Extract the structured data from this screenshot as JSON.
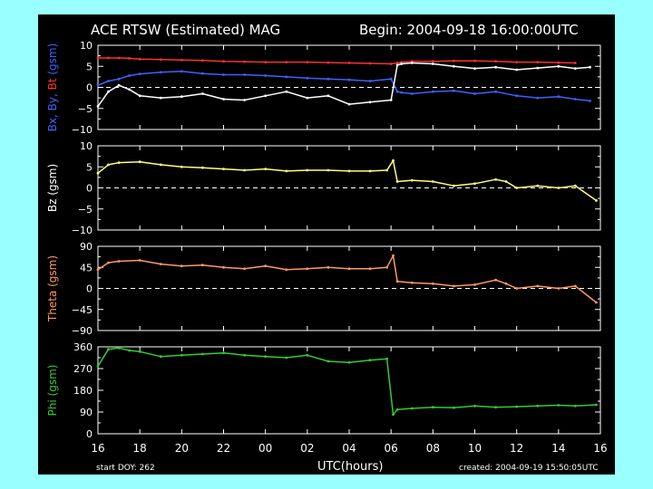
{
  "header": {
    "title": "ACE RTSW (Estimated) MAG",
    "begin": "Begin: 2004-09-18 16:00:00UTC"
  },
  "footer": {
    "start_doy": "start DOY:  262",
    "xlabel": "UTC(hours)",
    "created": "created: 2004-09-19 15:50:05UTC"
  },
  "colors": {
    "background": "#99ffff",
    "frame": "#000000",
    "bx": "#ffffff",
    "by": "#4060ff",
    "bt": "#ff3030",
    "bz": "#ffff80",
    "theta": "#ff9966",
    "phi": "#33cc33"
  },
  "chart_data": [
    {
      "type": "line",
      "ylabel_parts": [
        {
          "text": "Bx",
          "color": "#4060ff"
        },
        {
          "text": ", By, ",
          "color": "#4060ff"
        },
        {
          "text": "Bt",
          "color": "#ff3030"
        },
        {
          "text": " (gsm)",
          "color": "#4060ff"
        }
      ],
      "ylim": [
        -10,
        10
      ],
      "yticks": [
        "10",
        "5",
        "0",
        "−5",
        "−10"
      ],
      "ytick_values": [
        10,
        5,
        0,
        -5,
        -10
      ],
      "zero_line": true,
      "x": [
        16.0,
        16.5,
        17.0,
        17.5,
        18.0,
        19.0,
        20.0,
        21.0,
        22.0,
        23.0,
        24.0,
        25.0,
        26.0,
        27.0,
        28.0,
        29.0,
        30.0,
        30.3,
        30.5,
        31.0,
        32.0,
        33.0,
        34.0,
        35.0,
        36.0,
        37.0,
        38.0,
        38.8,
        39.5
      ],
      "series": [
        {
          "name": "Bt",
          "color": "#ff3030",
          "values": [
            7.0,
            7.0,
            7.0,
            6.9,
            6.7,
            6.6,
            6.5,
            6.4,
            6.2,
            6.1,
            6.0,
            6.0,
            6.0,
            5.9,
            5.8,
            5.7,
            5.6,
            5.8,
            6.0,
            6.2,
            6.2,
            6.3,
            6.3,
            6.2,
            6.0,
            6.0,
            5.9,
            5.8,
            null
          ]
        },
        {
          "name": "By",
          "color": "#4060ff",
          "values": [
            0.5,
            1.5,
            2.0,
            2.8,
            3.2,
            3.6,
            3.8,
            3.3,
            3.0,
            3.0,
            2.8,
            2.5,
            2.2,
            2.0,
            1.8,
            1.5,
            2.0,
            -1.0,
            -1.2,
            -1.5,
            -1.0,
            -0.8,
            -1.5,
            -1.0,
            -2.0,
            -2.5,
            -2.2,
            -2.8,
            -3.2
          ]
        },
        {
          "name": "Bx",
          "color": "#ffffff",
          "values": [
            -4.5,
            -1.0,
            0.5,
            -0.5,
            -2.0,
            -2.5,
            -2.2,
            -1.5,
            -2.8,
            -3.0,
            -2.0,
            -1.0,
            -2.5,
            -2.0,
            -4.0,
            -3.5,
            -3.0,
            5.3,
            5.6,
            5.8,
            5.6,
            5.0,
            4.5,
            4.8,
            4.2,
            4.6,
            5.0,
            4.5,
            4.8
          ]
        }
      ]
    },
    {
      "type": "line",
      "ylabel_parts": [
        {
          "text": "Bz (gsm)",
          "color": "#ffffff"
        }
      ],
      "ylim": [
        -10,
        10
      ],
      "yticks": [
        "10",
        "5",
        "0",
        "−5",
        "−10"
      ],
      "ytick_values": [
        10,
        5,
        0,
        -5,
        -10
      ],
      "zero_line": true,
      "x": [
        16.0,
        16.5,
        17.0,
        18.0,
        19.0,
        20.0,
        21.0,
        22.0,
        23.0,
        24.0,
        25.0,
        26.0,
        27.0,
        28.0,
        29.0,
        29.8,
        30.1,
        30.3,
        31.0,
        32.0,
        33.0,
        34.0,
        35.0,
        35.5,
        36.0,
        37.0,
        38.0,
        38.8,
        39.8
      ],
      "series": [
        {
          "name": "Bz",
          "color": "#ffff80",
          "values": [
            3.5,
            5.5,
            6.0,
            6.2,
            5.5,
            5.0,
            4.8,
            4.5,
            4.2,
            4.5,
            4.0,
            4.2,
            4.2,
            4.0,
            4.0,
            4.2,
            6.5,
            1.5,
            1.8,
            1.5,
            0.5,
            1.0,
            2.0,
            1.5,
            0.0,
            0.5,
            0.0,
            0.5,
            -3.0
          ]
        }
      ]
    },
    {
      "type": "line",
      "ylabel_parts": [
        {
          "text": "Theta (gsm)",
          "color": "#ff9966"
        }
      ],
      "ylim": [
        -90,
        90
      ],
      "yticks": [
        "90",
        "45",
        "0",
        "−45",
        "−90"
      ],
      "ytick_values": [
        90,
        45,
        0,
        -45,
        -90
      ],
      "zero_line": true,
      "x": [
        16.0,
        16.5,
        17.0,
        18.0,
        19.0,
        20.0,
        21.0,
        22.0,
        23.0,
        24.0,
        25.0,
        26.0,
        27.0,
        28.0,
        29.0,
        29.8,
        30.1,
        30.3,
        31.0,
        32.0,
        33.0,
        34.0,
        35.0,
        35.5,
        36.0,
        37.0,
        38.0,
        38.8,
        39.8
      ],
      "series": [
        {
          "name": "Theta",
          "color": "#ff9966",
          "values": [
            40,
            55,
            58,
            60,
            52,
            48,
            50,
            45,
            42,
            48,
            40,
            42,
            45,
            42,
            42,
            45,
            70,
            15,
            12,
            10,
            5,
            8,
            18,
            10,
            0,
            5,
            0,
            5,
            -30
          ]
        }
      ]
    },
    {
      "type": "line",
      "ylabel_parts": [
        {
          "text": "Phi (gsm)",
          "color": "#33cc33"
        }
      ],
      "ylim": [
        0,
        360
      ],
      "yticks": [
        "360",
        "270",
        "180",
        "90",
        "0"
      ],
      "ytick_values": [
        360,
        270,
        180,
        90,
        0
      ],
      "zero_line": false,
      "x": [
        16.0,
        16.5,
        17.0,
        17.5,
        18.0,
        19.0,
        20.0,
        21.0,
        22.0,
        23.0,
        24.0,
        25.0,
        26.0,
        27.0,
        28.0,
        29.0,
        29.8,
        30.1,
        30.3,
        31.0,
        32.0,
        33.0,
        34.0,
        35.0,
        36.0,
        37.0,
        38.0,
        38.8,
        39.8
      ],
      "series": [
        {
          "name": "Phi",
          "color": "#33cc33",
          "values": [
            280,
            350,
            355,
            345,
            340,
            320,
            325,
            330,
            335,
            325,
            320,
            315,
            325,
            300,
            295,
            305,
            310,
            80,
            100,
            105,
            110,
            108,
            115,
            110,
            112,
            115,
            118,
            115,
            120
          ]
        }
      ]
    }
  ],
  "xaxis": {
    "xlim": [
      16,
      40
    ],
    "tick_values": [
      16,
      18,
      20,
      22,
      24,
      26,
      28,
      30,
      32,
      34,
      36,
      38,
      40
    ],
    "tick_labels": [
      "16",
      "18",
      "20",
      "22",
      "00",
      "02",
      "04",
      "06",
      "08",
      "10",
      "12",
      "14",
      "16"
    ]
  }
}
